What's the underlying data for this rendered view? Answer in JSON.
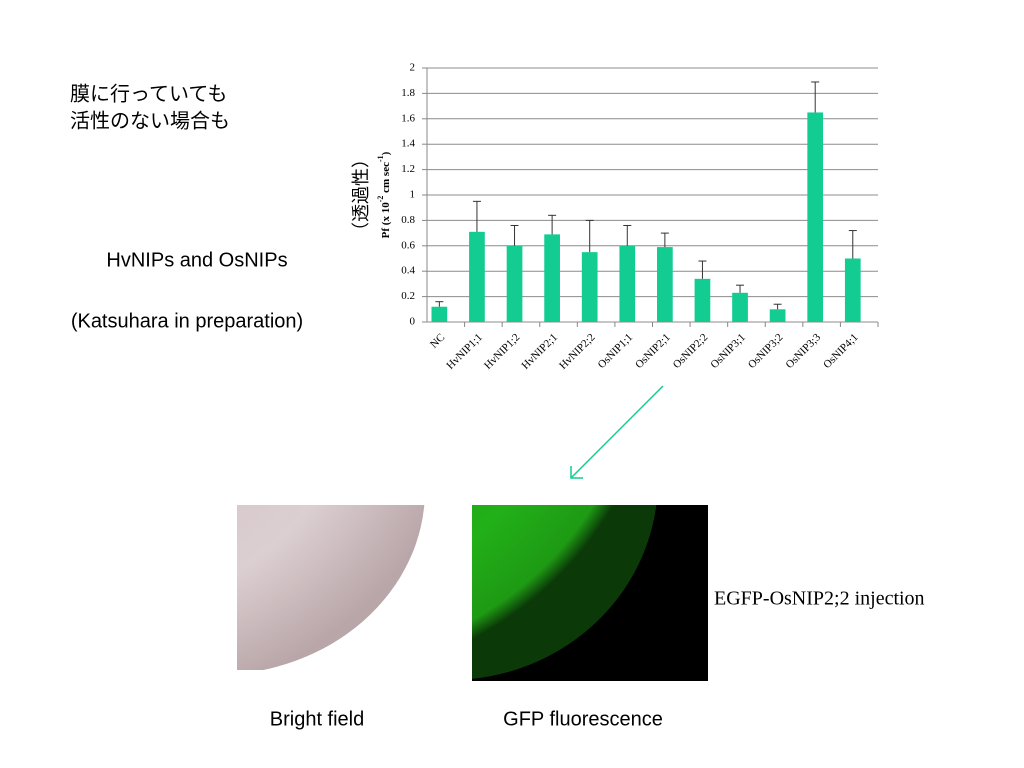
{
  "slide": {
    "note": [
      "膜に行っていても",
      "活性のない場合も"
    ],
    "heading": "HvNIPs and OsNIPs",
    "citation": "(Katsuhara in preparation)",
    "image_caption": "EGFP-OsNIP2;2 injection",
    "image_labels": [
      "Bright field",
      "GFP fluorescence"
    ]
  },
  "chart_data": {
    "type": "bar",
    "y_label": [
      "Pf (x 10",
      "-2",
      " cm sec",
      "-1",
      ")"
    ],
    "y_label_2": "（透過性）",
    "categories": [
      "NC",
      "HvNIP1;1",
      "HvNIP1;2",
      "HvNIP2;1",
      "HvNIP2;2",
      "OsNIP1;1",
      "OsNIP2;1",
      "OsNIP2;2",
      "OsNIP3;1",
      "OsNIP3;2",
      "OsNIP3;3",
      "OsNIP4;1"
    ],
    "values": [
      0.12,
      0.71,
      0.6,
      0.69,
      0.55,
      0.6,
      0.59,
      0.34,
      0.23,
      0.1,
      1.65,
      0.5
    ],
    "errors": [
      0.04,
      0.24,
      0.16,
      0.15,
      0.25,
      0.16,
      0.11,
      0.14,
      0.06,
      0.04,
      0.24,
      0.22
    ],
    "color": "#12cc92",
    "ylim": [
      0,
      2
    ],
    "yticks": [
      0,
      0.2,
      0.4,
      0.6,
      0.8,
      1,
      1.2,
      1.4,
      1.6,
      1.8,
      2
    ],
    "grid": true
  }
}
